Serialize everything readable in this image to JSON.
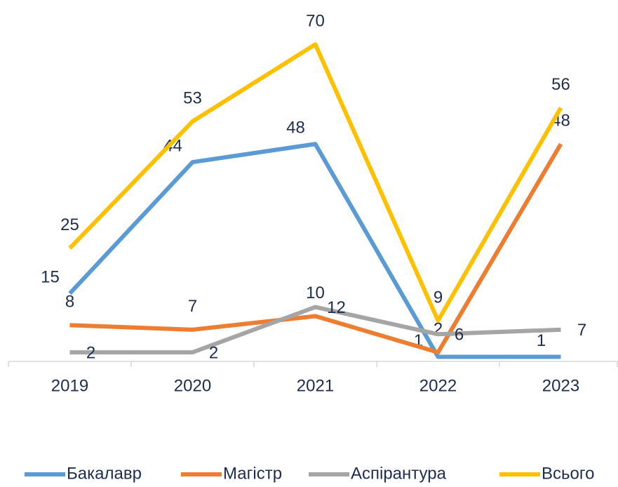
{
  "chart_data": {
    "type": "line",
    "categories": [
      "2019",
      "2020",
      "2021",
      "2022",
      "2023"
    ],
    "series": [
      {
        "name": "Бакалавр",
        "color": "#5b9bd5",
        "values": [
          15,
          44,
          48,
          1,
          1
        ]
      },
      {
        "name": "Магістр",
        "color": "#ed7d31",
        "values": [
          8,
          7,
          10,
          2,
          48
        ]
      },
      {
        "name": "Аспірантура",
        "color": "#a5a5a5",
        "values": [
          2,
          2,
          12,
          6,
          7
        ]
      },
      {
        "name": "Всього",
        "color": "#ffc000",
        "values": [
          25,
          53,
          70,
          9,
          56
        ]
      }
    ],
    "ylim": [
      0,
      75
    ],
    "legend": "bottom"
  }
}
